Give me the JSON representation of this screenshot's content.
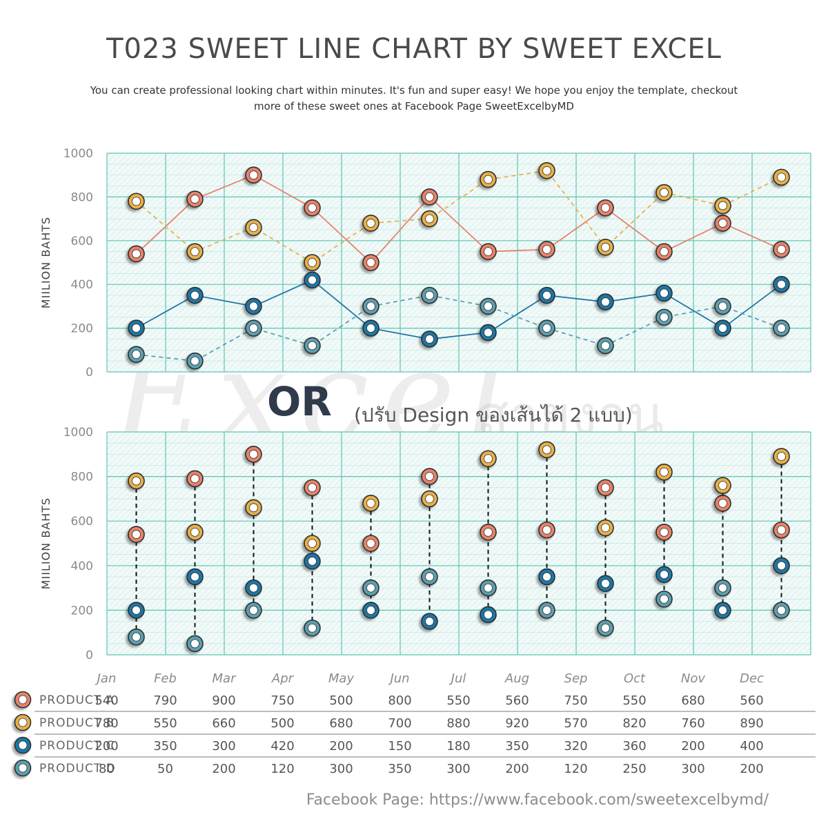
{
  "title": "T023 SWEET LINE CHART BY SWEET EXCEL",
  "subtitle": "You can create professional looking chart within minutes. It's fun and super easy! We hope you enjoy the template, checkout more of these sweet ones at Facebook Page SweetExcelbyMD",
  "watermark": {
    "text": "Excel",
    "thai": "สายงาน"
  },
  "separator": {
    "or": "OR",
    "note": "(ปรับ Design ของเส้นได้ 2 แบบ)"
  },
  "footer": "Facebook Page: https://www.facebook.com/sweetexcelbymd/",
  "chart_data": [
    {
      "type": "line",
      "ylabel": "MIILION BAHTS",
      "ylim": [
        0,
        1000
      ],
      "yticks": [
        0,
        200,
        400,
        600,
        800,
        1000
      ],
      "grid": true,
      "categories": [
        "Jan",
        "Feb",
        "Mar",
        "Apr",
        "May",
        "Jun",
        "Jul",
        "Aug",
        "Sep",
        "Oct",
        "Nov",
        "Dec"
      ],
      "series": [
        {
          "name": "PRODUCT A",
          "color": "#e8826b",
          "line": "solid",
          "values": [
            540,
            790,
            900,
            750,
            500,
            800,
            550,
            560,
            750,
            550,
            680,
            560
          ]
        },
        {
          "name": "PRODUCT B",
          "color": "#e8b04a",
          "line": "dashed",
          "values": [
            780,
            550,
            660,
            500,
            680,
            700,
            880,
            920,
            570,
            820,
            760,
            890
          ]
        },
        {
          "name": "PRODUCT C",
          "color": "#1f77a6",
          "line": "solid",
          "values": [
            200,
            350,
            300,
            420,
            200,
            150,
            180,
            350,
            320,
            360,
            200,
            400
          ]
        },
        {
          "name": "PRODUCT D",
          "color": "#5b9fb0",
          "line": "dashed",
          "values": [
            80,
            50,
            200,
            120,
            300,
            350,
            300,
            200,
            120,
            250,
            300,
            200
          ]
        }
      ]
    },
    {
      "type": "scatter",
      "ylabel": "MIILION BAHTS",
      "ylim": [
        0,
        1000
      ],
      "yticks": [
        0,
        200,
        400,
        600,
        800,
        1000
      ],
      "grid": true,
      "connector": "vertical dashed black line from min to max per month",
      "categories": [
        "Jan",
        "Feb",
        "Mar",
        "Apr",
        "May",
        "Jun",
        "Jul",
        "Aug",
        "Sep",
        "Oct",
        "Nov",
        "Dec"
      ],
      "series": [
        {
          "name": "PRODUCT A",
          "color": "#e8826b",
          "values": [
            540,
            790,
            900,
            750,
            500,
            800,
            550,
            560,
            750,
            550,
            680,
            560
          ]
        },
        {
          "name": "PRODUCT B",
          "color": "#e8b04a",
          "values": [
            780,
            550,
            660,
            500,
            680,
            700,
            880,
            920,
            570,
            820,
            760,
            890
          ]
        },
        {
          "name": "PRODUCT C",
          "color": "#1f77a6",
          "values": [
            200,
            350,
            300,
            420,
            200,
            150,
            180,
            350,
            320,
            360,
            200,
            400
          ]
        },
        {
          "name": "PRODUCT D",
          "color": "#5b9fb0",
          "values": [
            80,
            50,
            200,
            120,
            300,
            350,
            300,
            200,
            120,
            250,
            300,
            200
          ]
        }
      ]
    }
  ]
}
